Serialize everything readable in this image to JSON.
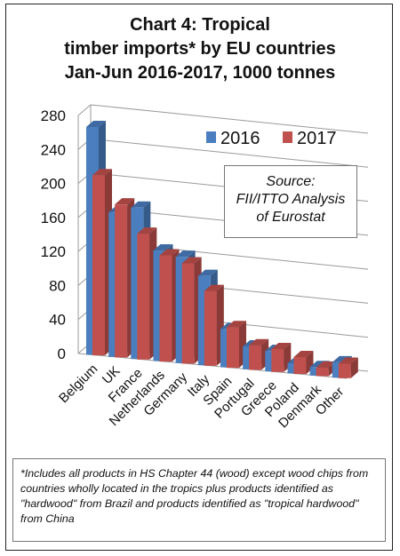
{
  "title_lines": [
    "Chart 4: Tropical",
    "timber imports* by EU countries",
    "Jan-Jun 2016-2017, 1000 tonnes"
  ],
  "source_lines": [
    "Source:",
    "FII/ITTO Analysis",
    "of Eurostat"
  ],
  "footnote": "*Includes all products in HS Chapter 44 (wood) except wood chips from countries wholly located in the tropics plus products identified as \"hardwood\" from Brazil and products identified as \"tropical hardwood\" from China",
  "colors": {
    "2016": "#4a7ebf",
    "2017": "#c0504d"
  },
  "chart_data": {
    "type": "bar",
    "title": "Chart 4: Tropical timber imports* by EU countries Jan-Jun 2016-2017, 1000 tonnes",
    "categories": [
      "Belgium",
      "UK",
      "France",
      "Netherlands",
      "Germany",
      "Italy",
      "Spain",
      "Portugal",
      "Greece",
      "Poland",
      "Denmark",
      "Other"
    ],
    "series": [
      {
        "name": "2016",
        "values": [
          268,
          170,
          178,
          130,
          125,
          105,
          45,
          27,
          24,
          12,
          10,
          18
        ]
      },
      {
        "name": "2017",
        "values": [
          212,
          180,
          148,
          125,
          118,
          88,
          48,
          29,
          27,
          20,
          10,
          17
        ]
      }
    ],
    "yticks": [
      "0",
      "40",
      "80",
      "120",
      "160",
      "200",
      "240",
      "280"
    ],
    "ylim": [
      0,
      280
    ],
    "grid": true,
    "legend_position": "top-right"
  }
}
